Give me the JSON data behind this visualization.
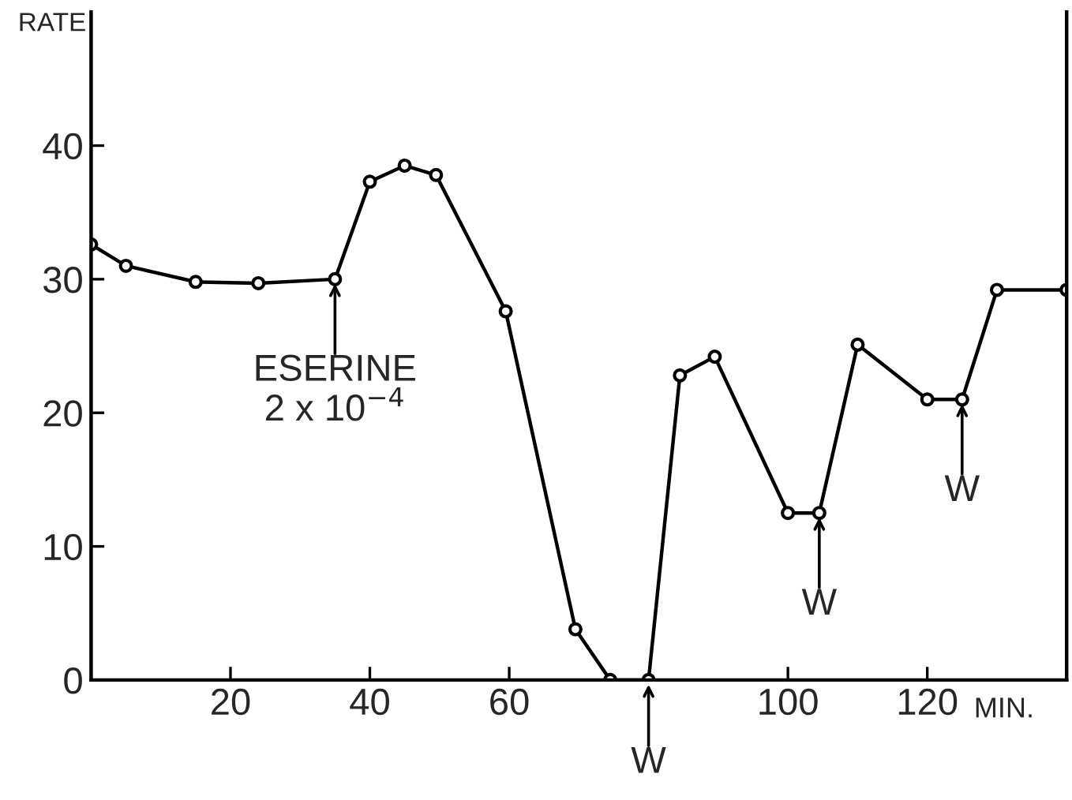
{
  "chart_data": {
    "type": "line",
    "ylabel": "RATE",
    "xlabel": "MIN.",
    "x": [
      0,
      5,
      15,
      24,
      35,
      40,
      45,
      49.5,
      59.5,
      69.5,
      74.5,
      80,
      84.5,
      89.5,
      100,
      104.5,
      110,
      120,
      125,
      130,
      140
    ],
    "values": [
      32.6,
      31.0,
      29.8,
      29.7,
      30,
      37.3,
      38.5,
      37.8,
      27.6,
      3.8,
      0,
      0,
      22.8,
      24.2,
      12.5,
      12.5,
      25.1,
      21.0,
      21,
      29.2,
      29.2
    ],
    "color": "#000000",
    "marker": "circle",
    "line_style": "solid",
    "grid": false,
    "xlim": [
      0,
      140
    ],
    "ylim": [
      0,
      50
    ],
    "xticks": [
      20,
      40,
      60,
      100,
      120
    ],
    "yticks": [
      0,
      10,
      20,
      30,
      40
    ],
    "annotations": [
      {
        "text": "ESERINE\n2 x 10$^{−4}$",
        "x": 35,
        "y": 30
      },
      {
        "text": "W",
        "x": 80,
        "y": 0
      },
      {
        "text": "W",
        "x": 104.5,
        "y": 12.5
      },
      {
        "text": "W",
        "x": 125,
        "y": 21
      }
    ]
  }
}
